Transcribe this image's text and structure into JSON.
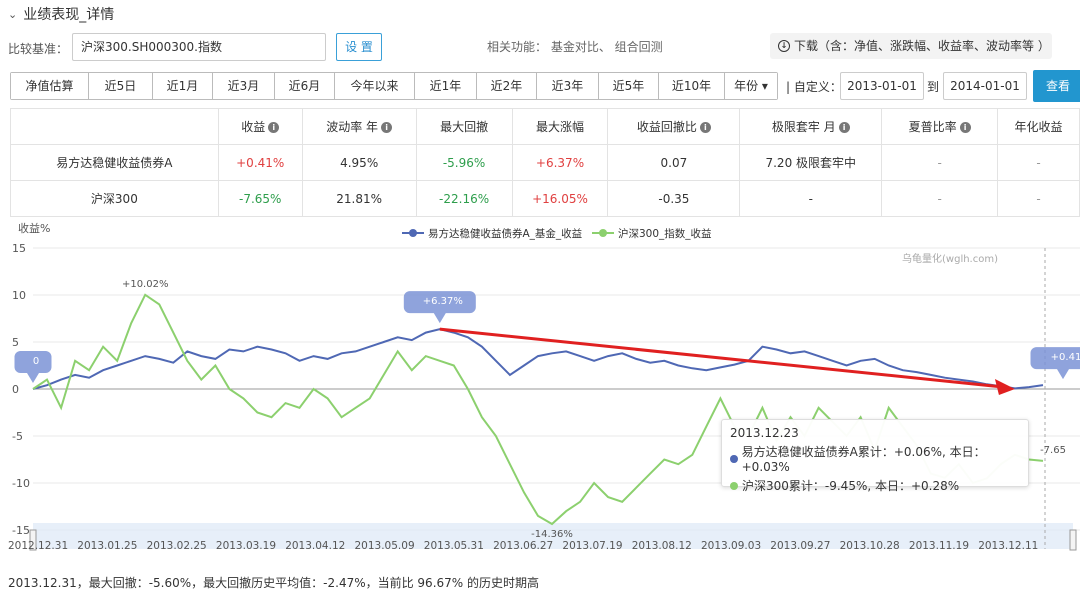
{
  "header": {
    "title": "业绩表现_详情"
  },
  "benchmark": {
    "label": "比较基准：",
    "value": "沪深300.SH000300.指数",
    "set_button": "设 置"
  },
  "related": "相关功能： 基金对比、 组合回测",
  "download": "下载（含：净值、涨跌幅、收益率、波动率等 ）",
  "tabs": [
    "净值估算",
    "近5日",
    "近1月",
    "近3月",
    "近6月",
    "今年以来",
    "近1年",
    "近2年",
    "近3年",
    "近5年",
    "近10年",
    "年份 ▾"
  ],
  "custom": {
    "label": "| 自定义：",
    "from": "2013-01-01",
    "to_label": "到",
    "to": "2014-01-01",
    "query": "查看"
  },
  "table": {
    "headers": [
      "收益",
      "波动率 年",
      "最大回撤",
      "最大涨幅",
      "收益回撤比",
      "极限套牢 月",
      "夏普比率",
      "年化收益"
    ],
    "rows": [
      {
        "name": "易方达稳健收益债券A",
        "cells": [
          "+0.41%",
          "4.95%",
          "-5.96%",
          "+6.37%",
          "0.07",
          "7.20 极限套牢中",
          "-",
          "-"
        ]
      },
      {
        "name": "沪深300",
        "cells": [
          "-7.65%",
          "21.81%",
          "-22.16%",
          "+16.05%",
          "-0.35",
          "-",
          "-",
          "-"
        ]
      }
    ]
  },
  "chart_data": {
    "type": "line",
    "ylabel": "收益%",
    "ylim": [
      -15,
      15
    ],
    "yticks": [
      15,
      10,
      5,
      0,
      -5,
      -10,
      -15
    ],
    "watermark": "乌龟量化(wglh.com)",
    "x_labels": [
      "2012.12.31",
      "2013.01.25",
      "2013.02.25",
      "2013.03.19",
      "2013.04.12",
      "2013.05.09",
      "2013.05.31",
      "2013.06.27",
      "2013.07.19",
      "2013.08.12",
      "2013.09.03",
      "2013.09.27",
      "2013.10.28",
      "2013.11.19",
      "2013.12.11"
    ],
    "series": [
      {
        "name": "易方达稳健收益债券A_基金_收益",
        "color": "#4f68b4",
        "values": [
          0,
          0.4,
          1.0,
          1.5,
          1.2,
          2.0,
          2.5,
          3.0,
          3.5,
          3.2,
          2.8,
          4.0,
          3.5,
          3.2,
          4.2,
          4.0,
          4.5,
          4.2,
          3.8,
          3.0,
          3.5,
          3.2,
          3.8,
          4.0,
          4.5,
          5.0,
          5.5,
          5.2,
          6.0,
          6.37,
          6.0,
          5.5,
          4.5,
          3.0,
          1.5,
          2.5,
          3.5,
          3.8,
          4.0,
          3.5,
          3.0,
          3.5,
          3.8,
          3.2,
          2.8,
          3.0,
          2.5,
          2.2,
          2.0,
          2.3,
          2.6,
          3.0,
          4.5,
          4.2,
          3.8,
          4.0,
          3.5,
          3.0,
          2.5,
          3.0,
          3.2,
          2.5,
          2.0,
          1.8,
          1.5,
          1.2,
          1.0,
          0.8,
          0.5,
          0.3,
          0.06,
          0.2,
          0.41
        ]
      },
      {
        "name": "沪深300_指数_收益",
        "color": "#8cd06e",
        "values": [
          0,
          1.0,
          -2.0,
          3.0,
          2.0,
          4.5,
          3.0,
          7.0,
          10.02,
          9.0,
          6.0,
          3.0,
          1.0,
          2.5,
          0,
          -1.0,
          -2.5,
          -3.0,
          -1.5,
          -2.0,
          0,
          -1.0,
          -3.0,
          -2.0,
          -1.0,
          1.5,
          4.0,
          2.0,
          3.5,
          3.0,
          2.5,
          0,
          -3.0,
          -5.0,
          -8.0,
          -11.0,
          -13.5,
          -14.36,
          -13.0,
          -12.0,
          -10.0,
          -11.5,
          -12.0,
          -10.5,
          -9.0,
          -7.5,
          -8.0,
          -7.0,
          -4.0,
          -1.0,
          -4.0,
          -5.0,
          -2.0,
          -5.5,
          -3.0,
          -5.0,
          -2.0,
          -3.5,
          -5.0,
          -3.0,
          -6.5,
          -2.0,
          -4.0,
          -6.0,
          -9.0,
          -9.45,
          -8.0,
          -10.0,
          -9.5,
          -8.0,
          -7.0,
          -7.5,
          -7.65
        ]
      }
    ],
    "annotations": [
      {
        "text": "+10.02%",
        "series": 1,
        "index": 8
      },
      {
        "text": "+6.37%",
        "series": 0,
        "index": 29
      },
      {
        "text": "-14.36%",
        "series": 1,
        "index": 37
      },
      {
        "text": "0",
        "series": 0,
        "index": 0
      },
      {
        "text": "+0.41",
        "series": 0,
        "index": 72
      },
      {
        "text": "-7.65",
        "series": 1,
        "index": 72
      }
    ],
    "legend_placement": "top"
  },
  "tooltip": {
    "date": "2013.12.23",
    "line1": "易方达稳健收益债券A累计：+0.06%, 本日：+0.03%",
    "line2": "沪深300累计：-9.45%, 本日：+0.28%"
  },
  "footer": "2013.12.31，最大回撤：-5.60%，最大回撤历史平均值：-2.47%，当前比 96.67% 的历史时期高",
  "colors": {
    "accent": "#2296cf",
    "fund": "#4f68b4",
    "index": "#8cd06e",
    "arrow": "#e02020"
  }
}
